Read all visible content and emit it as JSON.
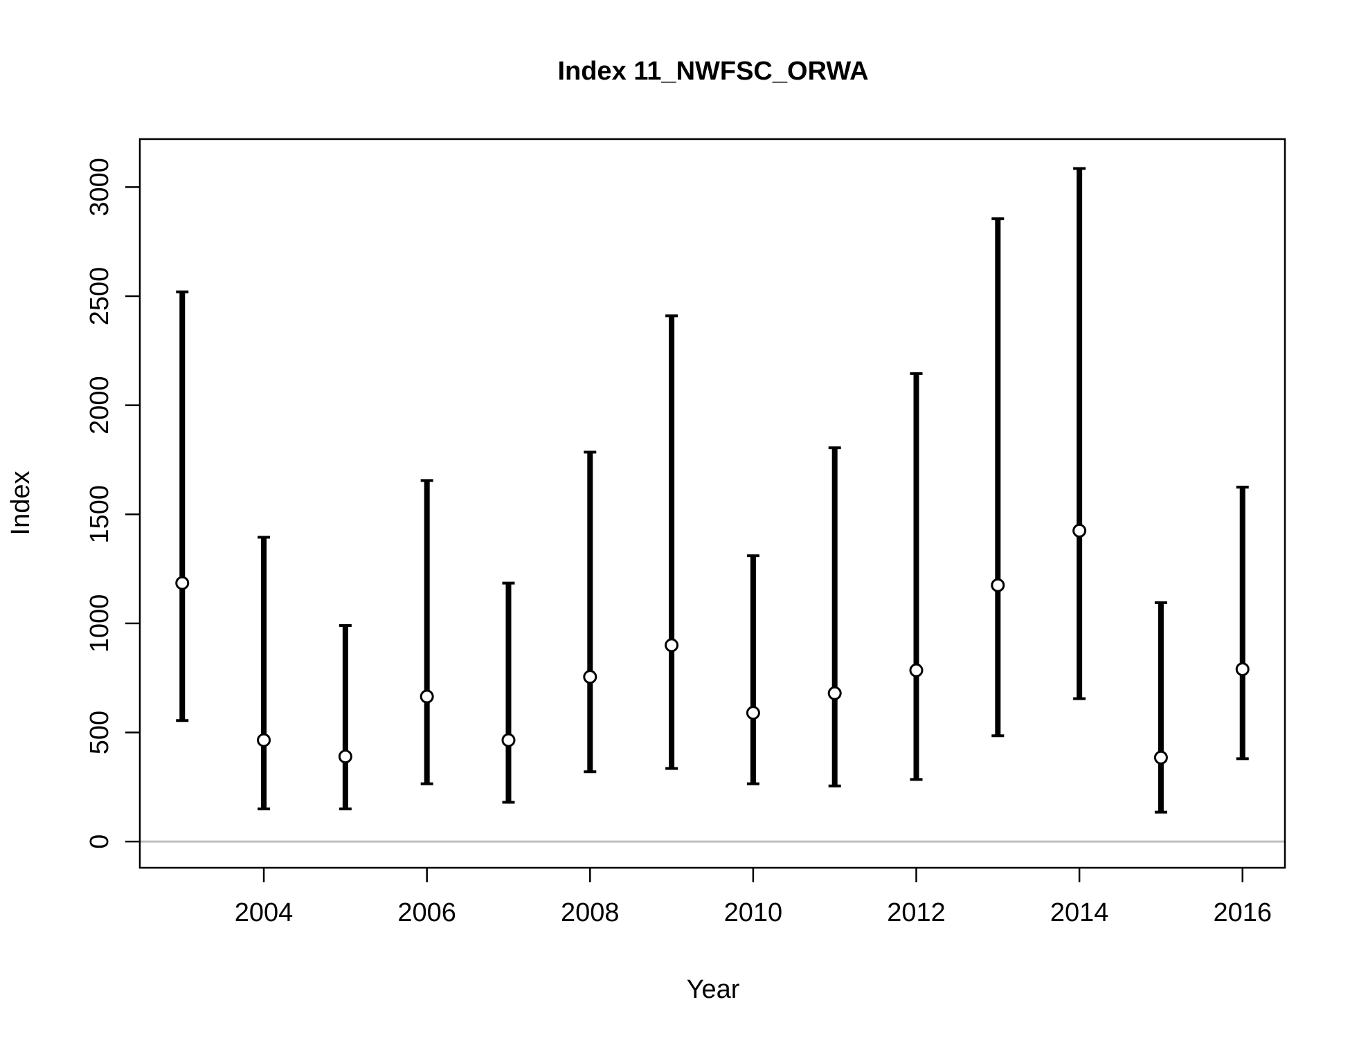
{
  "chart_data": {
    "type": "scatter",
    "title": "Index 11_NWFSC_ORWA",
    "xlabel": "Year",
    "ylabel": "Index",
    "xlim": [
      2002.48,
      2016.52
    ],
    "ylim": [
      -120,
      3220
    ],
    "x_ticks": [
      2004,
      2006,
      2008,
      2010,
      2012,
      2014,
      2016
    ],
    "y_ticks": [
      0,
      500,
      1000,
      1500,
      2000,
      2500,
      3000
    ],
    "reference_line": {
      "y": 0,
      "color": "#bebebe"
    },
    "points": [
      {
        "x": 2003,
        "y": 1185,
        "lower": 555,
        "upper": 2520
      },
      {
        "x": 2004,
        "y": 465,
        "lower": 150,
        "upper": 1395
      },
      {
        "x": 2005,
        "y": 390,
        "lower": 150,
        "upper": 990
      },
      {
        "x": 2006,
        "y": 665,
        "lower": 265,
        "upper": 1655
      },
      {
        "x": 2007,
        "y": 465,
        "lower": 180,
        "upper": 1185
      },
      {
        "x": 2008,
        "y": 755,
        "lower": 320,
        "upper": 1785
      },
      {
        "x": 2009,
        "y": 900,
        "lower": 335,
        "upper": 2410
      },
      {
        "x": 2010,
        "y": 590,
        "lower": 265,
        "upper": 1310
      },
      {
        "x": 2011,
        "y": 680,
        "lower": 255,
        "upper": 1805
      },
      {
        "x": 2012,
        "y": 785,
        "lower": 285,
        "upper": 2145
      },
      {
        "x": 2013,
        "y": 1175,
        "lower": 485,
        "upper": 2855
      },
      {
        "x": 2014,
        "y": 1425,
        "lower": 655,
        "upper": 3085
      },
      {
        "x": 2015,
        "y": 385,
        "lower": 135,
        "upper": 1095
      },
      {
        "x": 2016,
        "y": 790,
        "lower": 380,
        "upper": 1625
      }
    ],
    "grid": false,
    "legend": "none"
  }
}
